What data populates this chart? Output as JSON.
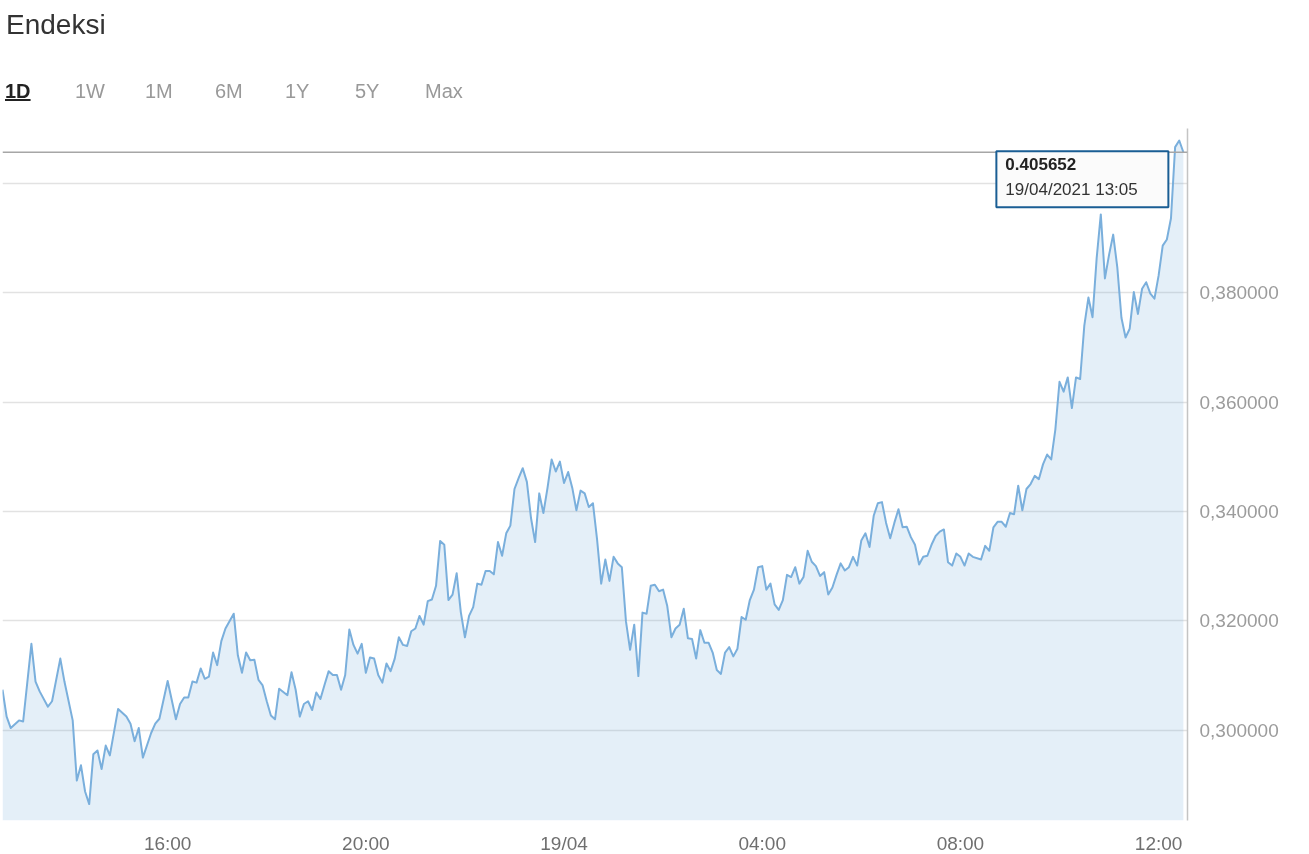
{
  "chart_data": {
    "type": "area",
    "title": "Endeksi",
    "annotations": [
      "1D",
      "1W",
      "1M",
      "6M",
      "1Y",
      "5Y",
      "Max",
      {
        "text": "0.405652\n19/04/2021 13:05",
        "x": "2021-04-19T12:30",
        "y": 0.405652
      }
    ],
    "x": [
      "2021-04-18T12:40",
      "2021-04-18T12:45",
      "2021-04-18T12:50",
      "2021-04-18T13:00",
      "2021-04-18T13:05",
      "2021-04-18T13:15",
      "2021-04-18T13:20",
      "2021-04-18T13:25",
      "2021-04-18T13:35",
      "2021-04-18T13:40",
      "2021-04-18T13:50",
      "2021-04-18T13:55",
      "2021-04-18T14:05",
      "2021-04-18T14:10",
      "2021-04-18T14:15",
      "2021-04-18T14:20",
      "2021-04-18T14:25",
      "2021-04-18T14:30",
      "2021-04-18T14:35",
      "2021-04-18T14:40",
      "2021-04-18T14:45",
      "2021-04-18T14:50",
      "2021-04-18T15:00",
      "2021-04-18T15:10",
      "2021-04-18T15:15",
      "2021-04-18T15:20",
      "2021-04-18T15:25",
      "2021-04-18T15:30",
      "2021-04-18T15:40",
      "2021-04-18T15:45",
      "2021-04-18T15:50",
      "2021-04-18T16:00",
      "2021-04-18T16:10",
      "2021-04-18T16:15",
      "2021-04-18T16:20",
      "2021-04-18T16:25",
      "2021-04-18T16:30",
      "2021-04-18T16:35",
      "2021-04-18T16:40",
      "2021-04-18T16:45",
      "2021-04-18T16:50",
      "2021-04-18T16:55",
      "2021-04-18T17:00",
      "2021-04-18T17:05",
      "2021-04-18T17:10",
      "2021-04-18T17:20",
      "2021-04-18T17:25",
      "2021-04-18T17:30",
      "2021-04-18T17:35",
      "2021-04-18T17:40",
      "2021-04-18T17:45",
      "2021-04-18T17:50",
      "2021-04-18T17:55",
      "2021-04-18T18:00",
      "2021-04-18T18:05",
      "2021-04-18T18:10",
      "2021-04-18T18:15",
      "2021-04-18T18:25",
      "2021-04-18T18:30",
      "2021-04-18T18:35",
      "2021-04-18T18:40",
      "2021-04-18T18:45",
      "2021-04-18T18:50",
      "2021-04-18T18:55",
      "2021-04-18T19:00",
      "2021-04-18T19:05",
      "2021-04-18T19:10",
      "2021-04-18T19:15",
      "2021-04-18T19:20",
      "2021-04-18T19:25",
      "2021-04-18T19:30",
      "2021-04-18T19:35",
      "2021-04-18T19:40",
      "2021-04-18T19:45",
      "2021-04-18T19:50",
      "2021-04-18T19:55",
      "2021-04-18T20:00",
      "2021-04-18T20:05",
      "2021-04-18T20:10",
      "2021-04-18T20:15",
      "2021-04-18T20:20",
      "2021-04-18T20:25",
      "2021-04-18T20:30",
      "2021-04-18T20:35",
      "2021-04-18T20:40",
      "2021-04-18T20:45",
      "2021-04-18T20:50",
      "2021-04-18T20:55",
      "2021-04-18T21:00",
      "2021-04-18T21:05",
      "2021-04-18T21:10",
      "2021-04-18T21:15",
      "2021-04-18T21:20",
      "2021-04-18T21:25",
      "2021-04-18T21:30",
      "2021-04-18T21:35",
      "2021-04-18T21:40",
      "2021-04-18T21:45",
      "2021-04-18T21:50",
      "2021-04-18T21:55",
      "2021-04-18T22:00",
      "2021-04-18T22:05",
      "2021-04-18T22:10",
      "2021-04-18T22:15",
      "2021-04-18T22:20",
      "2021-04-18T22:25",
      "2021-04-18T22:30",
      "2021-04-18T22:35",
      "2021-04-18T22:40",
      "2021-04-18T22:45",
      "2021-04-18T22:50",
      "2021-04-18T22:55",
      "2021-04-18T23:00",
      "2021-04-18T23:05",
      "2021-04-18T23:10",
      "2021-04-18T23:15",
      "2021-04-18T23:20",
      "2021-04-18T23:25",
      "2021-04-18T23:30",
      "2021-04-18T23:35",
      "2021-04-18T23:40",
      "2021-04-18T23:45",
      "2021-04-18T23:50",
      "2021-04-18T23:55",
      "2021-04-19T00:00",
      "2021-04-19T00:05",
      "2021-04-19T00:10",
      "2021-04-19T00:15",
      "2021-04-19T00:20",
      "2021-04-19T00:25",
      "2021-04-19T00:30",
      "2021-04-19T00:35",
      "2021-04-19T00:40",
      "2021-04-19T00:45",
      "2021-04-19T00:50",
      "2021-04-19T00:55",
      "2021-04-19T01:00",
      "2021-04-19T01:05",
      "2021-04-19T01:10",
      "2021-04-19T01:15",
      "2021-04-19T01:20",
      "2021-04-19T01:25",
      "2021-04-19T01:30",
      "2021-04-19T01:35",
      "2021-04-19T01:40",
      "2021-04-19T01:45",
      "2021-04-19T01:50",
      "2021-04-19T01:55",
      "2021-04-19T02:00",
      "2021-04-19T02:05",
      "2021-04-19T02:10",
      "2021-04-19T02:15",
      "2021-04-19T02:20",
      "2021-04-19T02:25",
      "2021-04-19T02:30",
      "2021-04-19T02:35",
      "2021-04-19T02:40",
      "2021-04-19T02:45",
      "2021-04-19T02:50",
      "2021-04-19T02:55",
      "2021-04-19T03:00",
      "2021-04-19T03:05",
      "2021-04-19T03:10",
      "2021-04-19T03:15",
      "2021-04-19T03:20",
      "2021-04-19T03:25",
      "2021-04-19T03:30",
      "2021-04-19T03:35",
      "2021-04-19T03:40",
      "2021-04-19T03:45",
      "2021-04-19T03:50",
      "2021-04-19T03:55",
      "2021-04-19T04:00",
      "2021-04-19T04:05",
      "2021-04-19T04:10",
      "2021-04-19T04:15",
      "2021-04-19T04:20",
      "2021-04-19T04:25",
      "2021-04-19T04:30",
      "2021-04-19T04:35",
      "2021-04-19T04:40",
      "2021-04-19T04:45",
      "2021-04-19T04:50",
      "2021-04-19T04:55",
      "2021-04-19T05:00",
      "2021-04-19T05:05",
      "2021-04-19T05:10",
      "2021-04-19T05:15",
      "2021-04-19T05:20",
      "2021-04-19T05:25",
      "2021-04-19T05:30",
      "2021-04-19T05:35",
      "2021-04-19T05:40",
      "2021-04-19T05:45",
      "2021-04-19T05:50",
      "2021-04-19T05:55",
      "2021-04-19T06:00",
      "2021-04-19T06:05",
      "2021-04-19T06:10",
      "2021-04-19T06:15",
      "2021-04-19T06:20",
      "2021-04-19T06:25",
      "2021-04-19T06:30",
      "2021-04-19T06:35",
      "2021-04-19T06:40",
      "2021-04-19T06:45",
      "2021-04-19T06:50",
      "2021-04-19T06:55",
      "2021-04-19T07:00",
      "2021-04-19T07:05",
      "2021-04-19T07:10",
      "2021-04-19T07:15",
      "2021-04-19T07:20",
      "2021-04-19T07:25",
      "2021-04-19T07:30",
      "2021-04-19T07:35",
      "2021-04-19T07:40",
      "2021-04-19T07:45",
      "2021-04-19T07:50",
      "2021-04-19T07:55",
      "2021-04-19T08:00",
      "2021-04-19T08:05",
      "2021-04-19T08:10",
      "2021-04-19T08:15",
      "2021-04-19T08:25",
      "2021-04-19T08:30",
      "2021-04-19T08:35",
      "2021-04-19T08:40",
      "2021-04-19T08:45",
      "2021-04-19T08:50",
      "2021-04-19T08:55",
      "2021-04-19T09:00",
      "2021-04-19T09:05",
      "2021-04-19T09:10",
      "2021-04-19T09:15",
      "2021-04-19T09:20",
      "2021-04-19T09:25",
      "2021-04-19T09:30",
      "2021-04-19T09:35",
      "2021-04-19T09:40",
      "2021-04-19T09:45",
      "2021-04-19T09:50",
      "2021-04-19T09:55",
      "2021-04-19T10:00",
      "2021-04-19T10:05",
      "2021-04-19T10:10",
      "2021-04-19T10:15",
      "2021-04-19T10:20",
      "2021-04-19T10:25",
      "2021-04-19T10:30",
      "2021-04-19T10:35",
      "2021-04-19T10:40",
      "2021-04-19T10:45",
      "2021-04-19T10:50",
      "2021-04-19T10:55",
      "2021-04-19T11:00",
      "2021-04-19T11:05",
      "2021-04-19T11:10",
      "2021-04-19T11:15",
      "2021-04-19T11:20",
      "2021-04-19T11:25",
      "2021-04-19T11:30",
      "2021-04-19T11:35",
      "2021-04-19T11:40",
      "2021-04-19T11:45",
      "2021-04-19T11:50",
      "2021-04-19T11:55",
      "2021-04-19T12:00",
      "2021-04-19T12:05",
      "2021-04-19T12:10",
      "2021-04-19T12:15",
      "2021-04-19T12:20",
      "2021-04-19T12:25",
      "2021-04-19T12:30"
    ],
    "series": [
      {
        "color": "#7aafdc",
        "values": [
          0.3074,
          0.3025,
          0.3004,
          0.3018,
          0.3016,
          0.3158,
          0.3089,
          0.3071,
          0.3043,
          0.3053,
          0.3131,
          0.3089,
          0.3018,
          0.2908,
          0.2936,
          0.2888,
          0.2865,
          0.2956,
          0.2963,
          0.2929,
          0.2972,
          0.2954,
          0.3039,
          0.3025,
          0.3012,
          0.298,
          0.3004,
          0.295,
          0.2995,
          0.3012,
          0.3021,
          0.309,
          0.302,
          0.3048,
          0.306,
          0.306,
          0.3089,
          0.3087,
          0.3113,
          0.3094,
          0.3098,
          0.3142,
          0.3119,
          0.3163,
          0.3186,
          0.3213,
          0.3137,
          0.3105,
          0.3142,
          0.3128,
          0.3129,
          0.3092,
          0.3082,
          0.3053,
          0.3027,
          0.302,
          0.3076,
          0.3064,
          0.3106,
          0.3074,
          0.3025,
          0.3048,
          0.3053,
          0.3037,
          0.3069,
          0.3057,
          0.3083,
          0.3108,
          0.3101,
          0.3101,
          0.3074,
          0.3101,
          0.3184,
          0.3156,
          0.314,
          0.3158,
          0.3105,
          0.3133,
          0.3131,
          0.3101,
          0.3087,
          0.3122,
          0.3108,
          0.3131,
          0.317,
          0.3156,
          0.3154,
          0.3181,
          0.3186,
          0.3209,
          0.3193,
          0.3236,
          0.3239,
          0.3264,
          0.3346,
          0.3339,
          0.3238,
          0.3248,
          0.3287,
          0.3216,
          0.317,
          0.3209,
          0.3225,
          0.3268,
          0.3266,
          0.3291,
          0.3291,
          0.3285,
          0.3344,
          0.3319,
          0.336,
          0.3374,
          0.3441,
          0.3461,
          0.3479,
          0.3454,
          0.3388,
          0.3344,
          0.3433,
          0.3397,
          0.3443,
          0.3495,
          0.3473,
          0.3491,
          0.3452,
          0.3472,
          0.3443,
          0.3402,
          0.3438,
          0.3433,
          0.3408,
          0.3415,
          0.3349,
          0.3268,
          0.3312,
          0.3273,
          0.3317,
          0.3305,
          0.3298,
          0.3199,
          0.3147,
          0.3193,
          0.3099,
          0.3215,
          0.3213,
          0.3264,
          0.3266,
          0.3254,
          0.3257,
          0.3227,
          0.317,
          0.3186,
          0.3193,
          0.3222,
          0.3168,
          0.3167,
          0.3131,
          0.3183,
          0.316,
          0.316,
          0.3142,
          0.311,
          0.3103,
          0.3142,
          0.3152,
          0.3135,
          0.3149,
          0.3207,
          0.3202,
          0.3238,
          0.3257,
          0.3298,
          0.33,
          0.3257,
          0.3268,
          0.323,
          0.322,
          0.3238,
          0.3284,
          0.328,
          0.3298,
          0.3268,
          0.328,
          0.3328,
          0.3308,
          0.33,
          0.3282,
          0.3289,
          0.3248,
          0.3261,
          0.3284,
          0.3305,
          0.3292,
          0.3298,
          0.3317,
          0.3301,
          0.3347,
          0.336,
          0.3335,
          0.3392,
          0.3415,
          0.3417,
          0.3379,
          0.3351,
          0.3379,
          0.3404,
          0.3371,
          0.3372,
          0.3353,
          0.3339,
          0.3303,
          0.3317,
          0.3319,
          0.3339,
          0.3355,
          0.3363,
          0.3367,
          0.3307,
          0.3301,
          0.3323,
          0.3317,
          0.3301,
          0.3323,
          0.3317,
          0.3312,
          0.3337,
          0.3328,
          0.3371,
          0.3381,
          0.3381,
          0.3372,
          0.3397,
          0.3395,
          0.3447,
          0.3402,
          0.3441,
          0.345,
          0.3465,
          0.3459,
          0.3486,
          0.3504,
          0.3495,
          0.355,
          0.3637,
          0.3619,
          0.3645,
          0.3589,
          0.3645,
          0.3642,
          0.3739,
          0.3791,
          0.3755,
          0.3863,
          0.3943,
          0.3826,
          0.3869,
          0.3906,
          0.3846,
          0.3754,
          0.3718,
          0.3734,
          0.3801,
          0.3761,
          0.3807,
          0.3819,
          0.3798,
          0.3789,
          0.3831,
          0.3886,
          0.3897,
          0.3936,
          0.4066,
          0.4078,
          0.405652
        ]
      }
    ],
    "xlim": [
      "2021-04-18T12:40",
      "2021-04-19T12:35"
    ],
    "xticks": [
      {
        "value": "2021-04-18T16:00",
        "label": "16:00"
      },
      {
        "value": "2021-04-18T20:00",
        "label": "20:00"
      },
      {
        "value": "2021-04-19T00:00",
        "label": "19/04"
      },
      {
        "value": "2021-04-19T04:00",
        "label": "04:00"
      },
      {
        "value": "2021-04-19T08:00",
        "label": "08:00"
      },
      {
        "value": "2021-04-19T12:00",
        "label": "12:00"
      }
    ],
    "ylim": [
      0.2835,
      0.41
    ],
    "yticks": [
      {
        "value": 0.3,
        "label": "0,300000"
      },
      {
        "value": 0.32,
        "label": "0,320000"
      },
      {
        "value": 0.34,
        "label": "0,340000"
      },
      {
        "value": 0.36,
        "label": "0,360000"
      },
      {
        "value": 0.38,
        "label": "0,380000"
      },
      {
        "value": 0.4,
        "label": null
      }
    ],
    "grid": "y",
    "ref_lines": [
      {
        "axis": "y",
        "value": 0.405652,
        "color": "#a6a6a6"
      }
    ]
  }
}
